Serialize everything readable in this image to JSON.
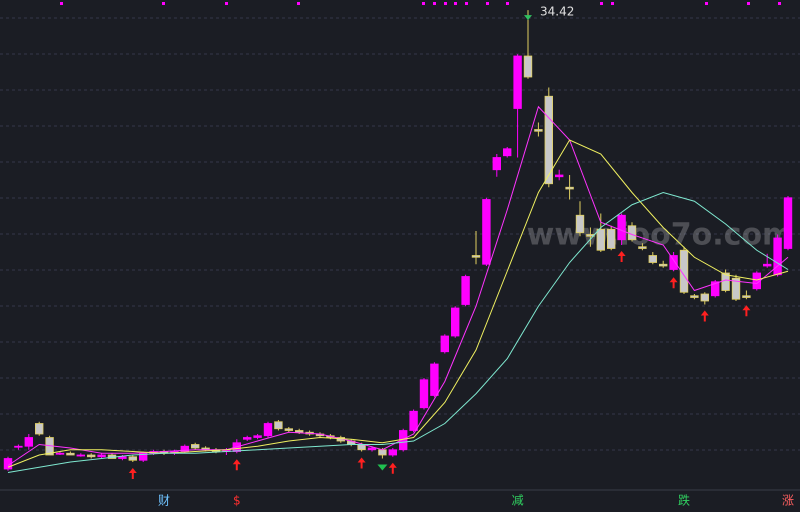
{
  "chart_data": {
    "type": "candlestick",
    "ylim": [
      7,
      35
    ],
    "up_color": "#ff00ff",
    "down_color": "#c8c8c8",
    "candles": [
      [
        8.2,
        8.9,
        8.1,
        8.8
      ],
      [
        9.5,
        9.6,
        9.3,
        9.5
      ],
      [
        9.5,
        10.2,
        9.3,
        10.0
      ],
      [
        10.8,
        10.9,
        10.1,
        10.2
      ],
      [
        10.0,
        10.1,
        9.0,
        9.0
      ],
      [
        9.1,
        9.2,
        9.0,
        9.1
      ],
      [
        9.1,
        9.2,
        9.0,
        9.0
      ],
      [
        9.0,
        9.1,
        8.9,
        9.0
      ],
      [
        9.0,
        9.1,
        8.8,
        8.9
      ],
      [
        8.9,
        9.1,
        8.8,
        9.0
      ],
      [
        9.0,
        9.1,
        8.8,
        8.8
      ],
      [
        8.8,
        9.0,
        8.7,
        8.9
      ],
      [
        8.9,
        9.0,
        8.6,
        8.7
      ],
      [
        8.7,
        9.2,
        8.6,
        9.1
      ],
      [
        9.1,
        9.3,
        9.0,
        9.2
      ],
      [
        9.2,
        9.3,
        9.0,
        9.1
      ],
      [
        9.1,
        9.3,
        9.0,
        9.2
      ],
      [
        9.2,
        9.6,
        9.1,
        9.5
      ],
      [
        9.6,
        9.7,
        9.3,
        9.4
      ],
      [
        9.4,
        9.5,
        9.2,
        9.3
      ],
      [
        9.3,
        9.4,
        9.1,
        9.2
      ],
      [
        9.2,
        9.4,
        9.0,
        9.3
      ],
      [
        9.2,
        9.9,
        9.1,
        9.7
      ],
      [
        9.9,
        10.1,
        9.8,
        10.0
      ],
      [
        10.0,
        10.2,
        9.9,
        10.1
      ],
      [
        10.1,
        10.9,
        10.0,
        10.8
      ],
      [
        10.9,
        11.0,
        10.4,
        10.5
      ],
      [
        10.5,
        10.6,
        10.3,
        10.4
      ],
      [
        10.4,
        10.5,
        10.2,
        10.3
      ],
      [
        10.3,
        10.4,
        10.1,
        10.2
      ],
      [
        10.2,
        10.3,
        10.0,
        10.1
      ],
      [
        10.1,
        10.2,
        9.9,
        10.0
      ],
      [
        10.0,
        10.1,
        9.7,
        9.8
      ],
      [
        9.8,
        9.9,
        9.5,
        9.6
      ],
      [
        9.6,
        9.7,
        9.2,
        9.3
      ],
      [
        9.3,
        9.5,
        9.2,
        9.4
      ],
      [
        9.3,
        9.4,
        8.8,
        9.0
      ],
      [
        9.0,
        9.4,
        8.9,
        9.3
      ],
      [
        9.3,
        10.5,
        9.2,
        10.4
      ],
      [
        10.4,
        11.6,
        10.3,
        11.5
      ],
      [
        11.7,
        13.4,
        11.6,
        13.3
      ],
      [
        12.4,
        14.3,
        12.3,
        14.2
      ],
      [
        14.9,
        15.9,
        14.8,
        15.8
      ],
      [
        15.8,
        17.5,
        15.7,
        17.4
      ],
      [
        17.6,
        19.3,
        17.5,
        19.2
      ],
      [
        20.4,
        21.8,
        19.9,
        20.3
      ],
      [
        19.9,
        23.7,
        19.8,
        23.6
      ],
      [
        25.3,
        26.2,
        24.9,
        26.0
      ],
      [
        26.1,
        26.6,
        26.0,
        26.5
      ],
      [
        28.8,
        31.9,
        26.0,
        31.8
      ],
      [
        31.8,
        34.42,
        30.5,
        30.6
      ],
      [
        27.6,
        28.0,
        27.2,
        27.5
      ],
      [
        29.5,
        30.0,
        24.3,
        24.5
      ],
      [
        24.9,
        25.3,
        24.7,
        25.0
      ],
      [
        24.3,
        25.0,
        23.6,
        24.2
      ],
      [
        22.7,
        23.5,
        21.5,
        21.7
      ],
      [
        21.6,
        22.0,
        20.9,
        21.5
      ],
      [
        21.9,
        22.8,
        20.6,
        20.7
      ],
      [
        21.9,
        22.1,
        20.7,
        20.8
      ],
      [
        21.3,
        22.8,
        21.0,
        22.7
      ],
      [
        22.1,
        22.3,
        21.2,
        21.3
      ],
      [
        20.9,
        21.1,
        20.7,
        20.8
      ],
      [
        20.4,
        20.6,
        19.9,
        20.0
      ],
      [
        19.9,
        20.1,
        19.7,
        19.8
      ],
      [
        19.6,
        20.6,
        19.5,
        20.4
      ],
      [
        20.7,
        20.9,
        18.2,
        18.3
      ],
      [
        18.1,
        18.2,
        17.9,
        18.0
      ],
      [
        18.2,
        18.3,
        17.6,
        17.8
      ],
      [
        18.1,
        19.0,
        18.0,
        18.9
      ],
      [
        19.4,
        19.6,
        18.3,
        18.4
      ],
      [
        19.1,
        19.3,
        17.8,
        17.9
      ],
      [
        18.1,
        18.4,
        17.9,
        18.0
      ],
      [
        18.5,
        19.5,
        18.4,
        19.4
      ],
      [
        19.8,
        20.5,
        19.7,
        19.9
      ],
      [
        19.3,
        21.6,
        19.2,
        21.4
      ],
      [
        20.8,
        23.8,
        20.7,
        23.7
      ]
    ],
    "high_label": "34.42",
    "high_index": 50,
    "series": [
      {
        "color": "#ff33ff",
        "x": [
          0,
          3,
          6,
          9,
          12,
          15,
          18,
          21,
          24,
          27,
          30,
          33,
          36,
          39,
          42,
          45,
          48,
          51,
          54,
          57,
          60,
          63,
          66,
          69,
          72,
          75
        ],
        "values": [
          8.4,
          9.6,
          9.4,
          9.1,
          9.1,
          9.2,
          9.3,
          9.3,
          9.8,
          10.3,
          10.2,
          9.8,
          9.3,
          10.2,
          13.2,
          17.5,
          23.0,
          28.9,
          27.0,
          22.3,
          21.6,
          21.0,
          18.4,
          19.0,
          18.8,
          20.3
        ]
      },
      {
        "color": "#f0f060",
        "x": [
          0,
          3,
          6,
          9,
          12,
          15,
          18,
          21,
          24,
          27,
          30,
          33,
          36,
          39,
          42,
          45,
          48,
          51,
          54,
          57,
          60,
          63,
          66,
          69,
          72,
          75
        ],
        "values": [
          8.3,
          9.0,
          9.3,
          9.3,
          9.2,
          9.1,
          9.2,
          9.3,
          9.5,
          9.8,
          10.0,
          9.9,
          9.7,
          10.0,
          12.0,
          15.0,
          19.5,
          24.0,
          27.0,
          26.2,
          24.0,
          22.0,
          20.3,
          19.3,
          19.0,
          19.5
        ]
      },
      {
        "color": "#7fe8d0",
        "x": [
          0,
          3,
          6,
          9,
          12,
          15,
          18,
          21,
          24,
          27,
          30,
          33,
          36,
          39,
          42,
          45,
          48,
          51,
          54,
          57,
          60,
          63,
          66,
          69,
          72,
          75
        ],
        "values": [
          8.0,
          8.3,
          8.6,
          8.8,
          9.0,
          9.1,
          9.1,
          9.2,
          9.3,
          9.4,
          9.5,
          9.6,
          9.6,
          9.8,
          10.8,
          12.5,
          14.5,
          17.5,
          20.0,
          22.0,
          23.3,
          24.0,
          23.5,
          22.2,
          20.7,
          19.6
        ]
      }
    ],
    "buy_signals": [
      12,
      22,
      34,
      37,
      59,
      64,
      67,
      71
    ],
    "sell_signals": [
      36
    ],
    "events": [
      {
        "label": "财",
        "index": 15,
        "color": "#6fc3ff"
      },
      {
        "label": "$",
        "index": 22,
        "color": "#ff3030"
      },
      {
        "label": "减",
        "index": 49,
        "color": "#30d060"
      },
      {
        "label": "跌",
        "index": 65,
        "color": "#30d060"
      },
      {
        "label": "涨",
        "index": 75,
        "color": "#ff6060"
      }
    ],
    "watermark": "www.ioo7o.com"
  }
}
